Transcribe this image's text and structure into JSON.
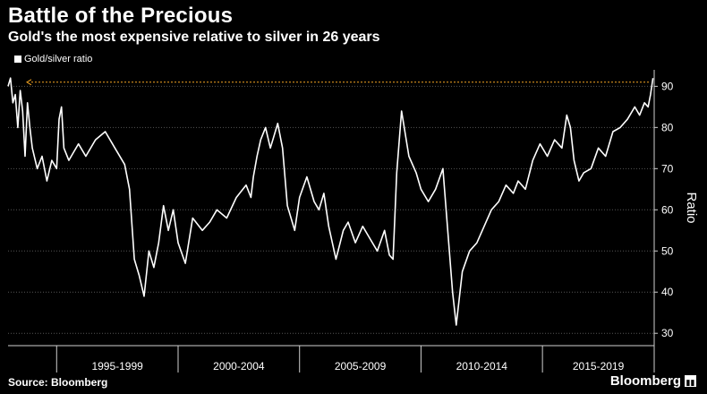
{
  "header": {
    "title": "Battle of the Precious",
    "subtitle": "Gold's the most expensive relative to silver in 26 years"
  },
  "legend": {
    "label": "Gold/silver ratio"
  },
  "footer": {
    "source": "Source: Bloomberg",
    "brand": "Bloomberg"
  },
  "colors": {
    "background": "#000000",
    "line": "#ffffff",
    "reference_line": "#f5a623",
    "grid": "#555555"
  },
  "chart_data": {
    "type": "line",
    "title": "Battle of the Precious",
    "subtitle": "Gold's the most expensive relative to silver in 26 years",
    "ylabel": "Ratio",
    "xlabel": "",
    "ylim": [
      27,
      94
    ],
    "xlim": [
      1993.0,
      2019.6
    ],
    "y_ticks": [
      30,
      40,
      50,
      60,
      70,
      80,
      90
    ],
    "x_tick_labels": [
      "1995-1999",
      "2000-2004",
      "2005-2009",
      "2010-2014",
      "2015-2019"
    ],
    "x_tick_bounds": [
      1995,
      2000,
      2005,
      2010,
      2015,
      2020
    ],
    "grid": "horizontal dotted",
    "legend": "top-left",
    "series": [
      {
        "name": "Gold/silver ratio",
        "x": [
          1993.0,
          1993.1,
          1993.2,
          1993.3,
          1993.4,
          1993.5,
          1993.6,
          1993.7,
          1993.8,
          1993.9,
          1994.0,
          1994.2,
          1994.4,
          1994.6,
          1994.8,
          1995.0,
          1995.1,
          1995.2,
          1995.3,
          1995.5,
          1995.7,
          1995.9,
          1996.2,
          1996.6,
          1997.0,
          1997.4,
          1997.8,
          1998.0,
          1998.2,
          1998.4,
          1998.6,
          1998.8,
          1999.0,
          1999.2,
          1999.4,
          1999.6,
          1999.8,
          2000.0,
          2000.3,
          2000.6,
          2001.0,
          2001.3,
          2001.6,
          2002.0,
          2002.4,
          2002.8,
          2003.0,
          2003.1,
          2003.25,
          2003.4,
          2003.6,
          2003.8,
          2004.0,
          2004.1,
          2004.3,
          2004.5,
          2004.8,
          2005.0,
          2005.3,
          2005.6,
          2005.8,
          2006.0,
          2006.2,
          2006.5,
          2006.8,
          2007.0,
          2007.3,
          2007.6,
          2007.9,
          2008.2,
          2008.5,
          2008.7,
          2008.85,
          2009.0,
          2009.2,
          2009.5,
          2009.8,
          2010.0,
          2010.3,
          2010.6,
          2010.9,
          2011.1,
          2011.3,
          2011.45,
          2011.7,
          2012.0,
          2012.3,
          2012.6,
          2012.9,
          2013.2,
          2013.5,
          2013.8,
          2014.0,
          2014.3,
          2014.6,
          2014.9,
          2015.2,
          2015.5,
          2015.8,
          2016.0,
          2016.15,
          2016.3,
          2016.5,
          2016.7,
          2017.0,
          2017.3,
          2017.6,
          2017.9,
          2018.2,
          2018.5,
          2018.8,
          2019.0,
          2019.2,
          2019.35,
          2019.45,
          2019.55
        ],
        "y": [
          90,
          92,
          86,
          88,
          80,
          89,
          84,
          73,
          86,
          80,
          75,
          70,
          73,
          67,
          72,
          70,
          82,
          85,
          75,
          72,
          74,
          76,
          73,
          77,
          79,
          75,
          71,
          65,
          48,
          44,
          39,
          50,
          46,
          52,
          61,
          55,
          60,
          52,
          47,
          58,
          55,
          57,
          60,
          58,
          63,
          66,
          63,
          68,
          73,
          77,
          80,
          75,
          79,
          81,
          75,
          61,
          55,
          63,
          68,
          62,
          60,
          64,
          56,
          48,
          55,
          57,
          52,
          56,
          53,
          50,
          55,
          49,
          48,
          69,
          84,
          73,
          69,
          65,
          62,
          65,
          70,
          55,
          40,
          32,
          45,
          50,
          52,
          56,
          60,
          62,
          66,
          64,
          67,
          65,
          72,
          76,
          73,
          77,
          75,
          83,
          80,
          72,
          67,
          69,
          70,
          75,
          73,
          79,
          80,
          82,
          85,
          83,
          86,
          85,
          88,
          92
        ]
      }
    ],
    "reference_line": {
      "y": 91
    }
  }
}
